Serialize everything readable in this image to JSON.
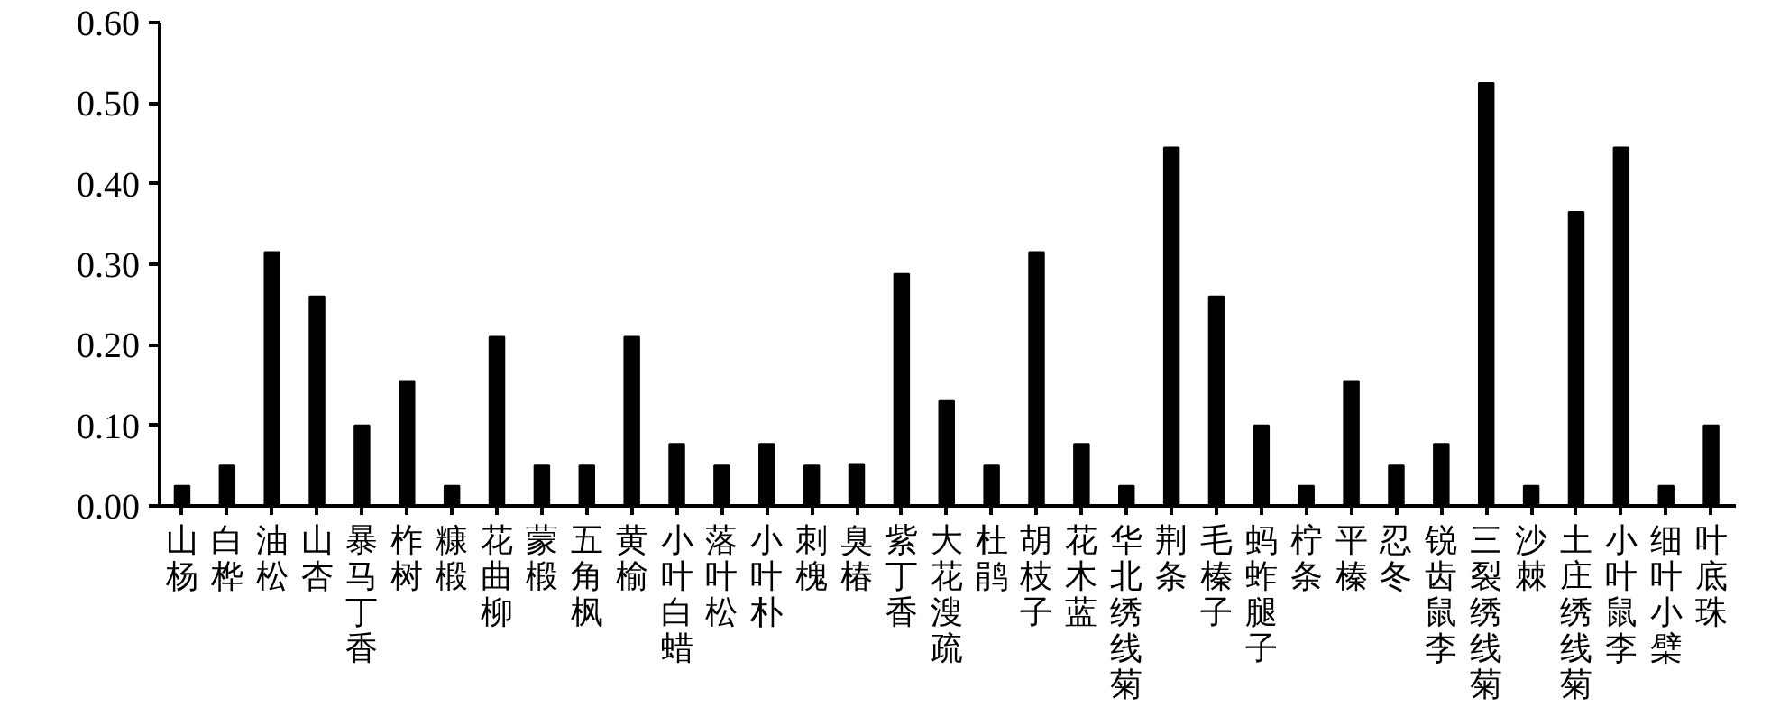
{
  "chart_data": {
    "type": "bar",
    "categories": [
      "山杨",
      "白桦",
      "油松",
      "山杏",
      "暴马丁香",
      "柞树",
      "糠椴",
      "花曲柳",
      "蒙椴",
      "五角枫",
      "黄榆",
      "小叶白蜡",
      "落叶松",
      "小叶朴",
      "刺槐",
      "臭椿",
      "紫丁香",
      "大花溲疏",
      "杜鹃",
      "胡枝子",
      "花木蓝",
      "华北绣线菊",
      "荆条",
      "毛榛子",
      "蚂蚱腿子",
      "柠条",
      "平榛",
      "忍冬",
      "锐齿鼠李",
      "三裂绣线菊",
      "沙棘",
      "土庄绣线菊",
      "小叶鼠李",
      "细叶小檗",
      "叶底珠"
    ],
    "values": [
      0.025,
      0.05,
      0.315,
      0.26,
      0.1,
      0.155,
      0.025,
      0.21,
      0.05,
      0.05,
      0.21,
      0.077,
      0.05,
      0.077,
      0.05,
      0.052,
      0.288,
      0.13,
      0.05,
      0.315,
      0.077,
      0.025,
      0.445,
      0.26,
      0.1,
      0.025,
      0.155,
      0.05,
      0.077,
      0.525,
      0.025,
      0.365,
      0.445,
      0.025,
      0.1
    ],
    "color": "#000000",
    "ylim": [
      0,
      0.6
    ],
    "yticks": [
      {
        "value": 0,
        "label": "0.00"
      },
      {
        "value": 0.1,
        "label": "0.10"
      },
      {
        "value": 0.2,
        "label": "0.20"
      },
      {
        "value": 0.3,
        "label": "0.30"
      },
      {
        "value": 0.4,
        "label": "0.40"
      },
      {
        "value": 0.5,
        "label": "0.50"
      },
      {
        "value": 0.6,
        "label": "0.60"
      }
    ],
    "grid": false
  }
}
